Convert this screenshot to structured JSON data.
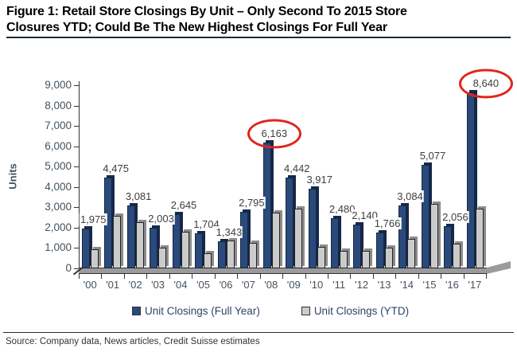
{
  "figure": {
    "title_line1": "Figure 1: Retail Store Closings By Unit – Only Second To 2015 Store",
    "title_line2": "Closures YTD; Could Be The New Highest Closings For Full Year"
  },
  "footer": {
    "source": "Source: Company data, News articles, Credit Suisse estimates"
  },
  "chart_data": {
    "type": "bar",
    "title": "Retail Store Closings By Unit",
    "ylabel": "Units",
    "xlabel": "",
    "ylim": [
      0,
      9000
    ],
    "ytick_interval": 1000,
    "ytick_labels": [
      "0",
      "1,000",
      "2,000",
      "3,000",
      "4,000",
      "5,000",
      "6,000",
      "7,000",
      "8,000",
      "9,000"
    ],
    "grid": false,
    "legend_position": "bottom",
    "categories": [
      "'00",
      "'01",
      "'02",
      "'03",
      "'04",
      "'05",
      "'06",
      "'07",
      "'08",
      "'09",
      "'10",
      "'11",
      "'12",
      "'13",
      "'14",
      "'15",
      "'16",
      "'17"
    ],
    "series": [
      {
        "name": "Unit Closings (Full Year)",
        "color": "#2A4A7B",
        "depth_color": "#16294A",
        "border_color": "#14263F",
        "values": [
          1975,
          4475,
          3081,
          2003,
          2645,
          1704,
          1343,
          2795,
          6163,
          4442,
          3917,
          2480,
          2140,
          1766,
          3084,
          5077,
          2056,
          8640
        ],
        "value_labels": [
          "1,975",
          "4,475",
          "3,081",
          "2,003",
          "2,645",
          "1,704",
          "1,343",
          "2,795",
          "6,163",
          "4,442",
          "3,917",
          "2,480",
          "2,140",
          "1,766",
          "3,084",
          "5,077",
          "2,056",
          "8,640"
        ]
      },
      {
        "name": "Unit Closings (YTD)",
        "color": "#CBCBCB",
        "depth_color": "#8C8C8C",
        "border_color": "#222222",
        "values": [
          950,
          2600,
          2250,
          1000,
          1800,
          750,
          1350,
          1250,
          2750,
          2950,
          1050,
          850,
          850,
          1000,
          1450,
          3150,
          1200,
          2950
        ]
      }
    ],
    "annotations": [
      {
        "type": "circle",
        "series": 0,
        "index": 8,
        "label": "6,163",
        "color": "#E0251C"
      },
      {
        "type": "circle",
        "series": 0,
        "index": 17,
        "label": "8,640",
        "color": "#E0251C"
      }
    ]
  }
}
